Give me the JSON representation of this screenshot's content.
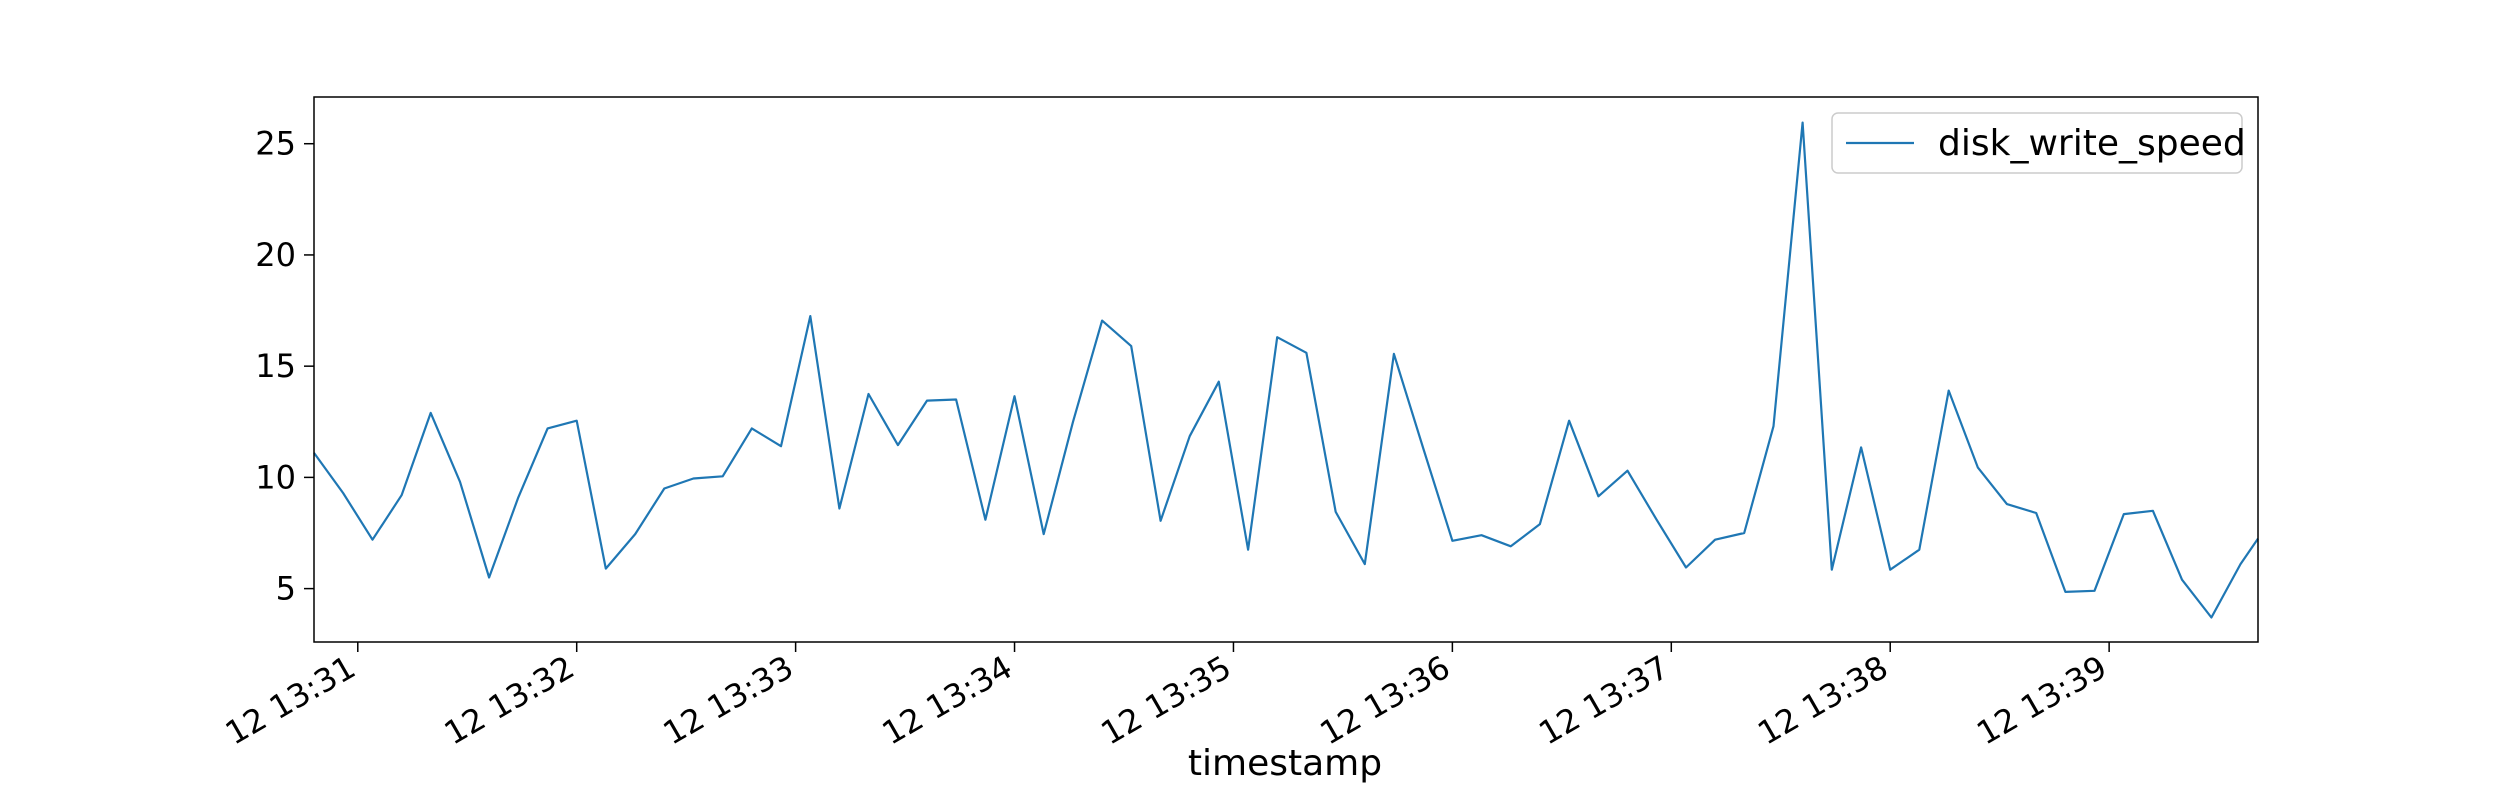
{
  "chart_data": {
    "type": "line",
    "title": "",
    "xlabel": "timestamp",
    "ylabel": "",
    "xlim": [
      30.8,
      39.68
    ],
    "ylim": [
      2.6,
      27.1
    ],
    "yticks": [
      5,
      10,
      15,
      20,
      25
    ],
    "xticks": [
      {
        "value": 31,
        "label": "12 13:31"
      },
      {
        "value": 32,
        "label": "12 13:32"
      },
      {
        "value": 33,
        "label": "12 13:33"
      },
      {
        "value": 34,
        "label": "12 13:34"
      },
      {
        "value": 35,
        "label": "12 13:35"
      },
      {
        "value": 36,
        "label": "12 13:36"
      },
      {
        "value": 37,
        "label": "12 13:37"
      },
      {
        "value": 38,
        "label": "12 13:38"
      },
      {
        "value": 39,
        "label": "12 13:39"
      }
    ],
    "grid": false,
    "legend_position": "top-right",
    "series": [
      {
        "name": "disk_write_speed",
        "color": "#1f77b4",
        "x": [
          30.8,
          30.933,
          31.067,
          31.2,
          31.333,
          31.467,
          31.6,
          31.733,
          31.867,
          32.0,
          32.133,
          32.267,
          32.4,
          32.533,
          32.667,
          32.8,
          32.933,
          33.067,
          33.2,
          33.333,
          33.467,
          33.6,
          33.733,
          33.867,
          34.0,
          34.133,
          34.267,
          34.4,
          34.533,
          34.667,
          34.8,
          34.933,
          35.067,
          35.2,
          35.333,
          35.467,
          35.6,
          35.733,
          35.867,
          36.0,
          36.133,
          36.267,
          36.4,
          36.533,
          36.667,
          36.8,
          36.933,
          37.067,
          37.2,
          37.333,
          37.467,
          37.6,
          37.733,
          37.867,
          38.0,
          38.133,
          38.267,
          38.4,
          38.533,
          38.667,
          38.8,
          38.933,
          39.067,
          39.2,
          39.333,
          39.467,
          39.6,
          39.68
        ],
        "values": [
          11.1,
          9.3,
          7.2,
          9.2,
          12.9,
          9.8,
          5.5,
          9.1,
          12.2,
          12.55,
          5.9,
          7.45,
          9.5,
          9.95,
          10.05,
          12.2,
          11.4,
          17.25,
          8.6,
          13.75,
          11.45,
          13.45,
          13.5,
          8.1,
          13.65,
          7.45,
          12.5,
          17.05,
          15.9,
          8.05,
          11.85,
          14.3,
          6.75,
          16.3,
          15.6,
          8.45,
          6.1,
          15.55,
          11.3,
          7.15,
          7.4,
          6.9,
          7.9,
          12.55,
          9.15,
          10.3,
          8.1,
          5.95,
          7.2,
          7.5,
          12.3,
          25.95,
          5.85,
          11.35,
          5.85,
          6.75,
          13.9,
          10.45,
          8.8,
          8.4,
          4.85,
          4.9,
          8.35,
          8.5,
          5.4,
          3.7,
          6.1,
          7.25
        ]
      }
    ]
  }
}
